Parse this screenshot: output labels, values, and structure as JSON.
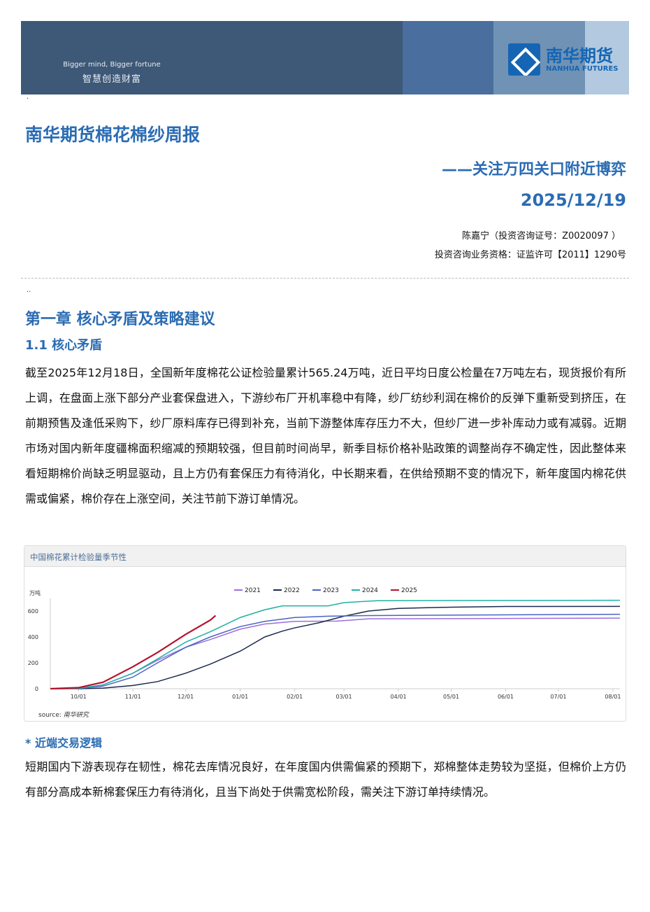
{
  "banner": {
    "slogan_en": "Bigger mind, Bigger fortune",
    "slogan_cn": "智慧创造财富",
    "logo_cn": "南华期货",
    "logo_en": "NANHUA FUTURES"
  },
  "report": {
    "title": "南华期货棉花棉纱周报",
    "subtitle": "——关注万四关口附近博弈",
    "date": "2025/12/19",
    "author": "陈嘉宁（投资咨询证号：Z0020097 ）",
    "license": "投资咨询业务资格：证监许可【2011】1290号"
  },
  "section": {
    "chapter": "第一章 核心矛盾及策略建议",
    "sub": "1.1 核心矛盾",
    "body": "截至2025年12月18日，全国新年度棉花公证检验量累计565.24万吨，近日平均日度公检量在7万吨左右，现货报价有所上调，在盘面上涨下部分产业套保盘进入，下游纱布厂开机率稳中有降，纱厂纺纱利润在棉价的反弹下重新受到挤压，在前期预售及逢低采购下，纱厂原料库存已得到补充，当前下游整体库存压力不大，但纱厂进一步补库动力或有减弱。近期市场对国内新年度疆棉面积缩减的预期较强，但目前时间尚早，新季目标价格补贴政策的调整尚存不确定性，因此整体来看短期棉价尚缺乏明显驱动，且上方仍有套保压力有待消化，中长期来看，在供给预期不变的情况下，新年度国内棉花供需或偏紧，棉价存在上涨空间，关注节前下游订单情况。",
    "logic_title": "* 近端交易逻辑",
    "logic_body": "短期国内下游表现存在韧性，棉花去库情况良好，在年度国内供需偏紧的预期下，郑棉整体走势较为坚挺，但棉价上方仍有部分高成本新棉套保压力有待消化，且当下尚处于供需宽松阶段，需关注下游订单持续情况。"
  },
  "chart_data": {
    "type": "line",
    "title": "中国棉花累计检验量季节性",
    "ylabel": "万吨",
    "ylim": [
      0,
      700
    ],
    "yticks": [
      0,
      200,
      400,
      600
    ],
    "xticks": [
      "10/01",
      "11/01",
      "12/01",
      "01/01",
      "02/01",
      "03/01",
      "04/01",
      "05/01",
      "06/01",
      "07/01",
      "08/01"
    ],
    "xrange": [
      "09/15",
      "08/05"
    ],
    "legend": "top",
    "grid": false,
    "source_label": "source:",
    "source": "南华研究",
    "series": [
      {
        "name": "2021",
        "color": "#9b6fe0",
        "points": [
          [
            "09/15",
            0
          ],
          [
            "10/01",
            2
          ],
          [
            "10/15",
            30
          ],
          [
            "11/01",
            120
          ],
          [
            "11/15",
            220
          ],
          [
            "12/01",
            320
          ],
          [
            "12/15",
            380
          ],
          [
            "01/01",
            460
          ],
          [
            "01/15",
            500
          ],
          [
            "02/01",
            520
          ],
          [
            "02/25",
            522
          ],
          [
            "03/15",
            540
          ],
          [
            "08/05",
            545
          ]
        ]
      },
      {
        "name": "2022",
        "color": "#1b2a4e",
        "points": [
          [
            "09/15",
            0
          ],
          [
            "10/01",
            0
          ],
          [
            "10/15",
            5
          ],
          [
            "11/01",
            25
          ],
          [
            "11/15",
            55
          ],
          [
            "12/01",
            120
          ],
          [
            "12/15",
            190
          ],
          [
            "01/01",
            290
          ],
          [
            "01/15",
            400
          ],
          [
            "01/25",
            445
          ],
          [
            "02/01",
            470
          ],
          [
            "02/15",
            510
          ],
          [
            "03/01",
            560
          ],
          [
            "03/15",
            600
          ],
          [
            "04/01",
            620
          ],
          [
            "05/01",
            630
          ],
          [
            "06/01",
            635
          ],
          [
            "08/05",
            636
          ]
        ]
      },
      {
        "name": "2023",
        "color": "#4a64c0",
        "points": [
          [
            "09/15",
            0
          ],
          [
            "10/01",
            2
          ],
          [
            "10/15",
            20
          ],
          [
            "11/01",
            90
          ],
          [
            "11/15",
            200
          ],
          [
            "12/01",
            320
          ],
          [
            "12/15",
            400
          ],
          [
            "01/01",
            480
          ],
          [
            "01/15",
            520
          ],
          [
            "02/01",
            550
          ],
          [
            "02/20",
            560
          ],
          [
            "03/15",
            565
          ],
          [
            "08/05",
            575
          ]
        ]
      },
      {
        "name": "2024",
        "color": "#1fb1a4",
        "points": [
          [
            "09/15",
            0
          ],
          [
            "10/01",
            3
          ],
          [
            "10/15",
            30
          ],
          [
            "11/01",
            120
          ],
          [
            "11/15",
            230
          ],
          [
            "12/01",
            360
          ],
          [
            "12/15",
            440
          ],
          [
            "01/01",
            550
          ],
          [
            "01/15",
            610
          ],
          [
            "01/25",
            640
          ],
          [
            "02/20",
            640
          ],
          [
            "03/01",
            665
          ],
          [
            "03/20",
            680
          ],
          [
            "08/05",
            683
          ]
        ]
      },
      {
        "name": "2025",
        "color": "#b5122e",
        "points": [
          [
            "09/15",
            0
          ],
          [
            "10/01",
            8
          ],
          [
            "10/15",
            50
          ],
          [
            "11/01",
            170
          ],
          [
            "11/15",
            280
          ],
          [
            "12/01",
            420
          ],
          [
            "12/15",
            530
          ],
          [
            "12/18",
            565
          ]
        ]
      }
    ]
  }
}
